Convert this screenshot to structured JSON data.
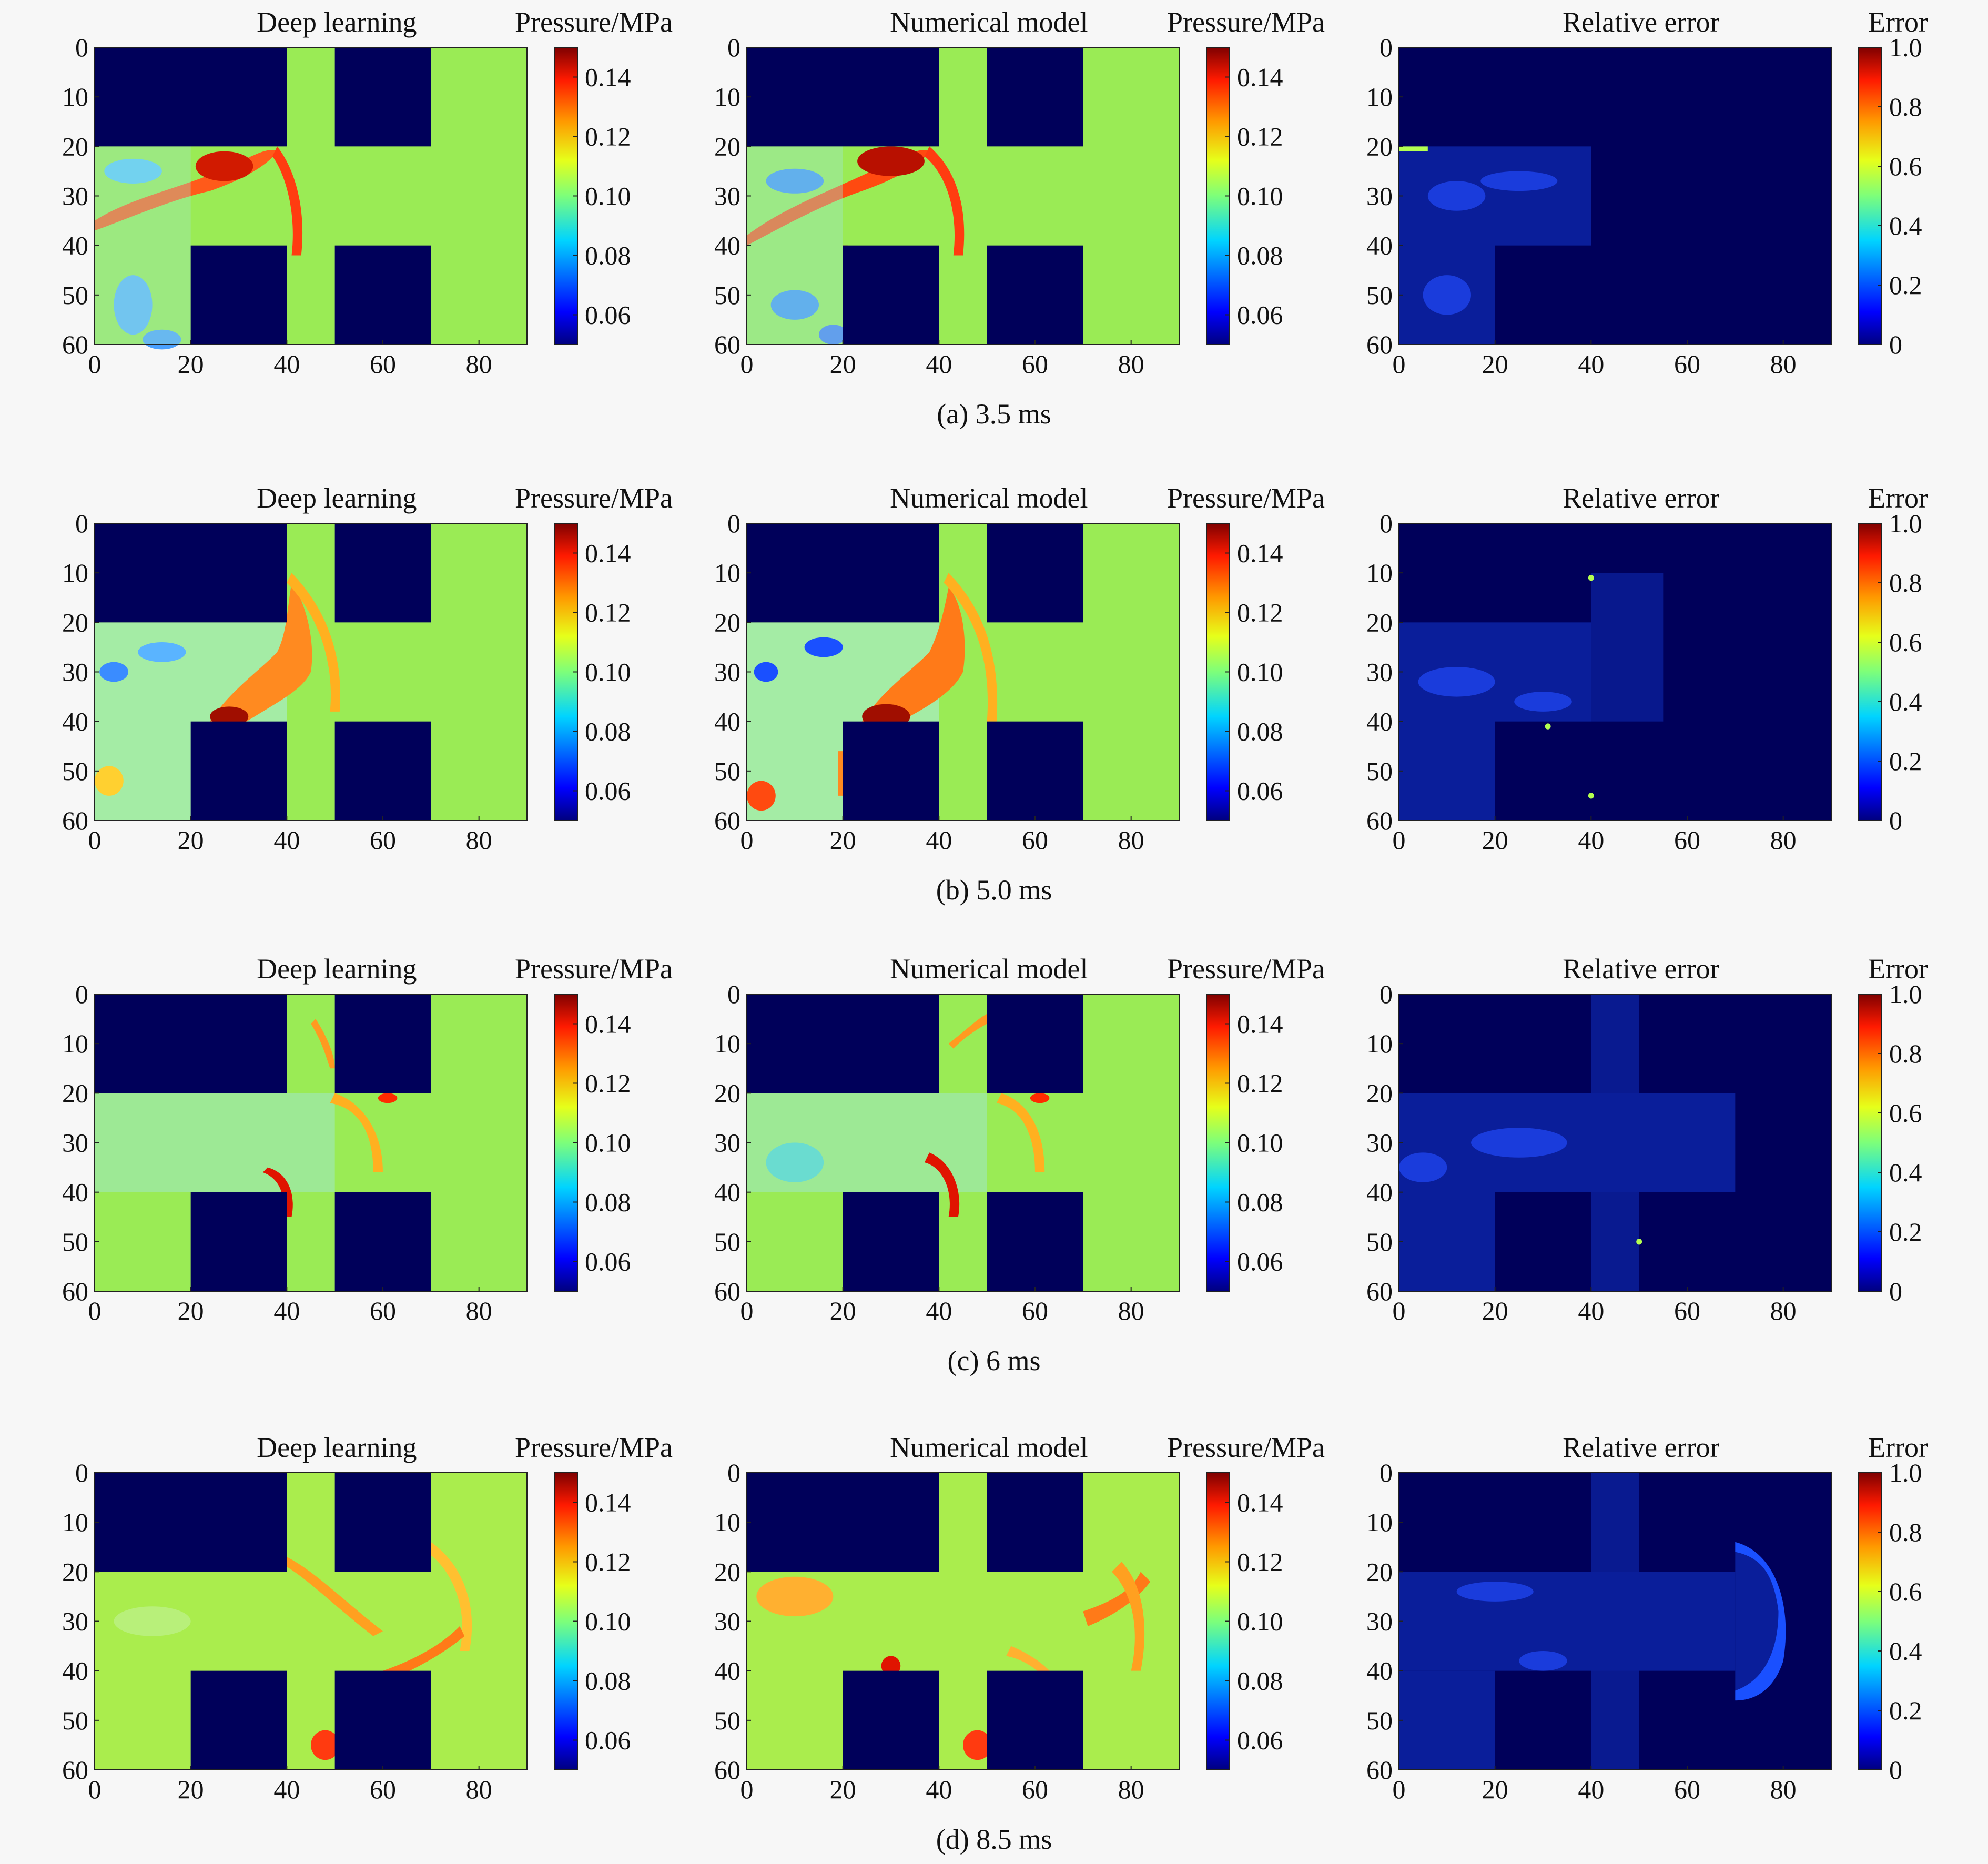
{
  "figure": {
    "rows": [
      {
        "caption": "(a) 3.5 ms",
        "panels": [
          {
            "title": "Deep learning",
            "cbar_label": "Pressure/MPa",
            "cbar_ticks": [
              "0.14",
              "0.12",
              "0.10",
              "0.08",
              "0.06"
            ]
          },
          {
            "title": "Numerical model",
            "cbar_label": "Pressure/MPa",
            "cbar_ticks": [
              "0.14",
              "0.12",
              "0.10",
              "0.08",
              "0.06"
            ]
          },
          {
            "title": "Relative error",
            "cbar_label": "Error",
            "cbar_ticks": [
              "1.0",
              "0.8",
              "0.6",
              "0.4",
              "0.2",
              "0"
            ]
          }
        ]
      },
      {
        "caption": "(b) 5.0 ms",
        "panels": [
          {
            "title": "Deep learning",
            "cbar_label": "Pressure/MPa",
            "cbar_ticks": [
              "0.14",
              "0.12",
              "0.10",
              "0.08",
              "0.06"
            ]
          },
          {
            "title": "Numerical model",
            "cbar_label": "Pressure/MPa",
            "cbar_ticks": [
              "0.14",
              "0.12",
              "0.10",
              "0.08",
              "0.06"
            ]
          },
          {
            "title": "Relative error",
            "cbar_label": "Error",
            "cbar_ticks": [
              "1.0",
              "0.8",
              "0.6",
              "0.4",
              "0.2",
              "0"
            ]
          }
        ]
      },
      {
        "caption": "(c) 6 ms",
        "panels": [
          {
            "title": "Deep learning",
            "cbar_label": "Pressure/MPa",
            "cbar_ticks": [
              "0.14",
              "0.12",
              "0.10",
              "0.08",
              "0.06"
            ]
          },
          {
            "title": "Numerical model",
            "cbar_label": "Pressure/MPa",
            "cbar_ticks": [
              "0.14",
              "0.12",
              "0.10",
              "0.08",
              "0.06"
            ]
          },
          {
            "title": "Relative error",
            "cbar_label": "Error",
            "cbar_ticks": [
              "1.0",
              "0.8",
              "0.6",
              "0.4",
              "0.2",
              "0"
            ]
          }
        ]
      },
      {
        "caption": "(d) 8.5 ms",
        "panels": [
          {
            "title": "Deep learning",
            "cbar_label": "Pressure/MPa",
            "cbar_ticks": [
              "0.14",
              "0.12",
              "0.10",
              "0.08",
              "0.06"
            ]
          },
          {
            "title": "Numerical model",
            "cbar_label": "Pressure/MPa",
            "cbar_ticks": [
              "0.14",
              "0.12",
              "0.10",
              "0.08",
              "0.06"
            ]
          },
          {
            "title": "Relative error",
            "cbar_label": "Error",
            "cbar_ticks": [
              "1.0",
              "0.8",
              "0.6",
              "0.4",
              "0.2",
              "0"
            ]
          }
        ]
      }
    ]
  },
  "chart_data": {
    "type": "heatmap",
    "x_ticks": [
      "0",
      "20",
      "40",
      "60",
      "80"
    ],
    "y_ticks": [
      "0",
      "10",
      "20",
      "30",
      "40",
      "50",
      "60"
    ],
    "xlim": [
      0,
      90
    ],
    "ylim": [
      0,
      60
    ],
    "colormap": "jet",
    "pressure_range": [
      0.05,
      0.15
    ],
    "error_range": [
      0,
      1
    ],
    "obstacle_color": "#00005a",
    "background_field_color": "#9aeb55"
  }
}
